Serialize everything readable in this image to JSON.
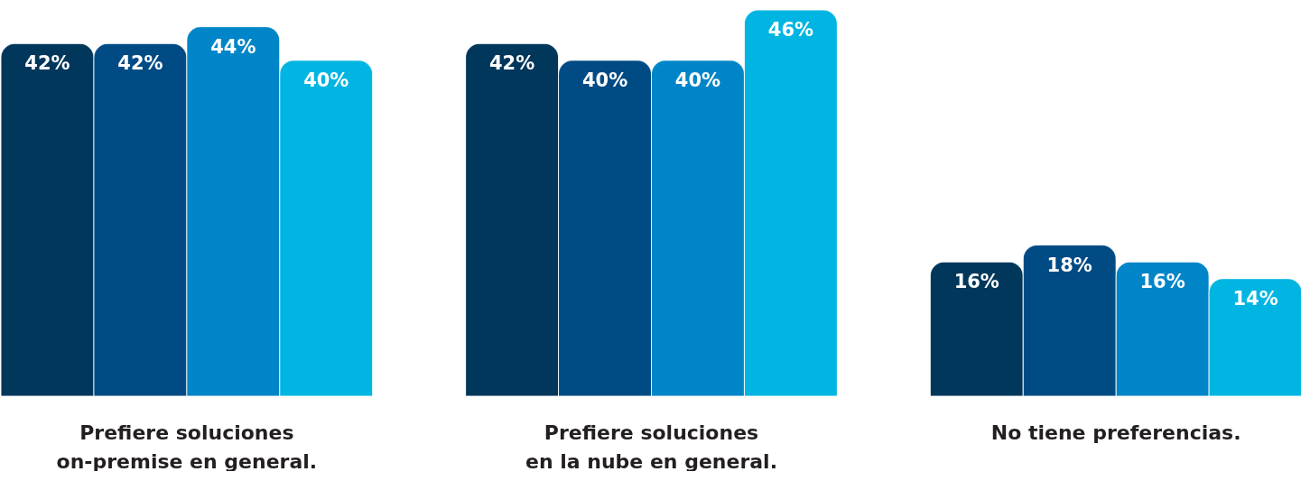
{
  "chart_data": {
    "type": "bar",
    "categories": [
      "Prefiere soluciones\non-premise en general.",
      "Prefiere soluciones\nen la nube en general.",
      "No tiene preferencias."
    ],
    "relative": false,
    "series": [
      {
        "color": "#00375b",
        "values": [
          42,
          42,
          16
        ],
        "value_labels": [
          "42%",
          "42%",
          "16%"
        ]
      },
      {
        "color": "#004b84",
        "values": [
          42,
          40,
          18
        ],
        "value_labels": [
          "42%",
          "40%",
          "18%"
        ]
      },
      {
        "color": "#0085c8",
        "values": [
          44,
          40,
          16
        ],
        "value_labels": [
          "44%",
          "40%",
          "16%"
        ]
      },
      {
        "color": "#00b5e2",
        "values": [
          40,
          46,
          14
        ],
        "value_labels": [
          "40%",
          "46%",
          "14%"
        ]
      }
    ],
    "legend": false,
    "grid": false
  }
}
